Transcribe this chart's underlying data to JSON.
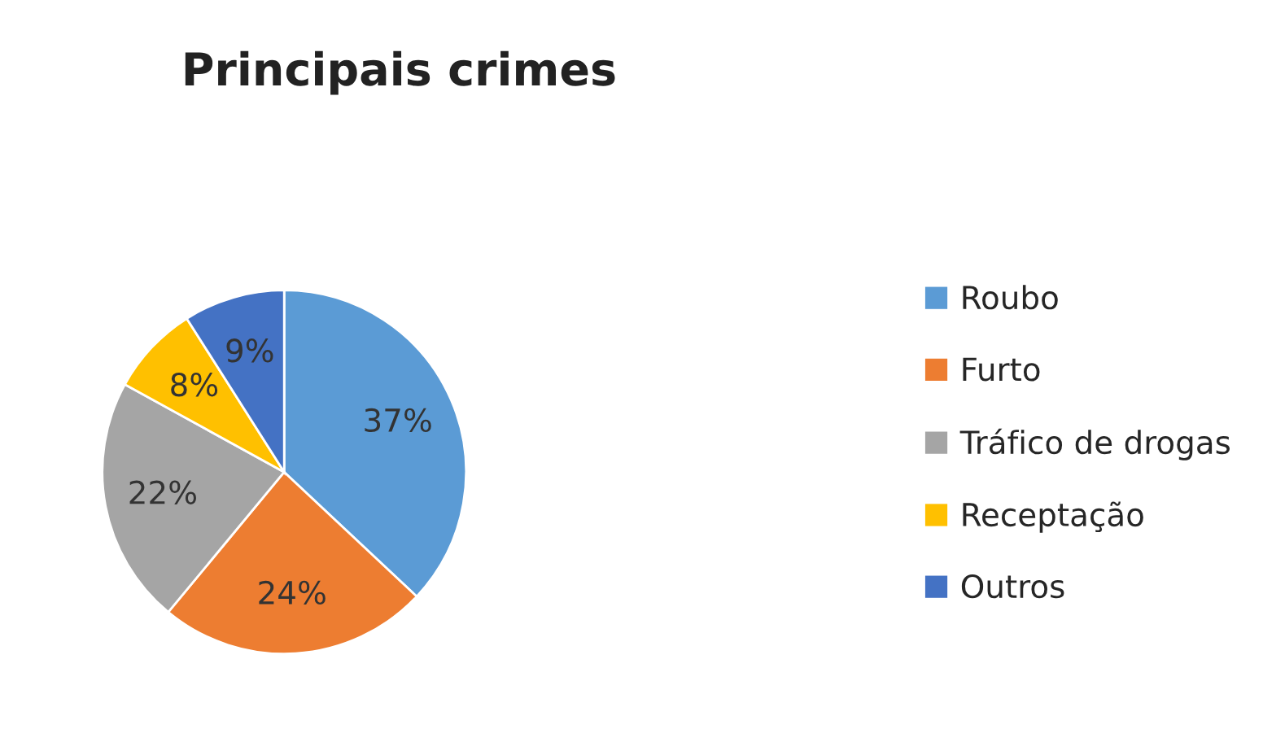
{
  "chart_data": {
    "type": "pie",
    "title": "Principais crimes",
    "categories": [
      "Roubo",
      "Furto",
      "Tráfico de drogas",
      "Receptação",
      "Outros"
    ],
    "values": [
      37,
      24,
      22,
      8,
      9
    ],
    "colors": [
      "#5b9bd5",
      "#ed7d31",
      "#a5a5a5",
      "#ffc000",
      "#4472c4"
    ],
    "value_labels": [
      "37%",
      "24%",
      "22%",
      "8%",
      "9%"
    ],
    "legend": "right"
  }
}
